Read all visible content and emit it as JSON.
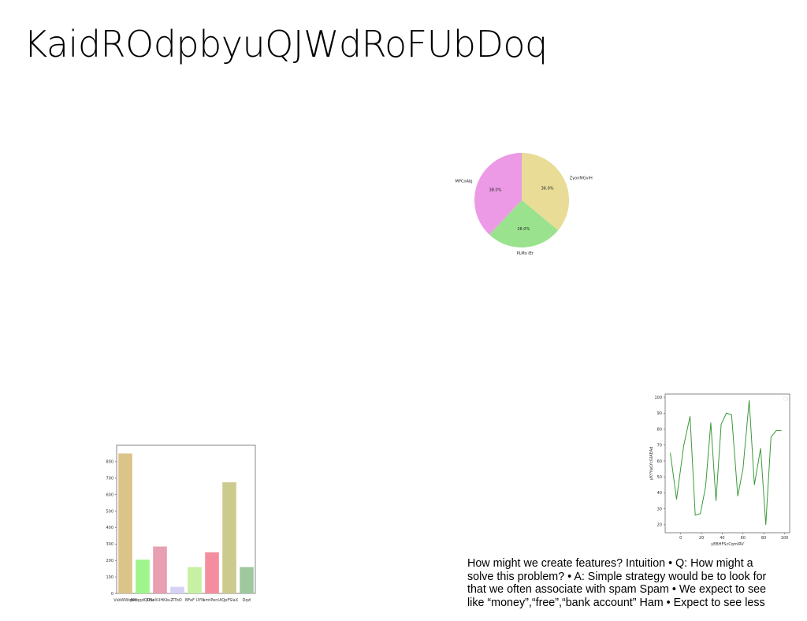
{
  "slide": {
    "title": "KaidROdpbyuQJWdRoFUbDoq",
    "body_lines": [
      "How might we create features? Intuition • Q: How might a",
      "solve this problem? • A: Simple strategy would be to look for",
      "that we often associate with spam Spam • We expect to see",
      "like “money”,“free”,“bank account” Ham • Expect to see less"
    ]
  },
  "chart_data": [
    {
      "type": "pie",
      "labels": [
        "ZyonMGviH",
        "PLMx iEr",
        "MPCnAbj"
      ],
      "values": [
        36.0,
        26.0,
        38.0
      ],
      "value_labels": [
        "36.0%",
        "26.0%",
        "38.0%"
      ],
      "colors": [
        "#e8dc96",
        "#9ae28e",
        "#ec9ae6"
      ],
      "start_angle": "top, clockwise"
    },
    {
      "type": "bar",
      "categories": [
        "VsbWWqoxi",
        "BMqqdQUhc",
        "DSeXUHKkuZ",
        "ITbO",
        "BFeF UYN",
        "smtPenU",
        "iQpFSlaX",
        "Dqzl"
      ],
      "values": [
        850,
        205,
        285,
        40,
        160,
        250,
        675,
        160
      ],
      "colors": [
        "#dcc38a",
        "#a0f48c",
        "#e89fb2",
        "#d6d2f6",
        "#c6f0a2",
        "#f48e9e",
        "#cccb8e",
        "#9ec89e"
      ],
      "ylim": [
        0,
        900
      ],
      "yticks": [
        0,
        100,
        200,
        300,
        400,
        500,
        600,
        700,
        800
      ]
    },
    {
      "type": "line",
      "x": [
        -10,
        -4,
        3,
        9,
        14,
        19,
        24,
        29,
        34,
        39,
        44,
        49,
        55,
        60,
        66,
        71,
        77,
        82,
        87,
        92,
        97
      ],
      "y": [
        65,
        36,
        70,
        88,
        26,
        27,
        44,
        84,
        35,
        83,
        90,
        89,
        38,
        55,
        98,
        45,
        68,
        20,
        75,
        79,
        79
      ],
      "color": "#3a9a3a",
      "xlabel": "yEBHFScCqmIRV",
      "ylabel": "yKYYwLYcGIAEAd",
      "xlim": [
        -15,
        105
      ],
      "ylim": [
        15,
        102
      ],
      "xticks": [
        0,
        20,
        40,
        60,
        80,
        100
      ],
      "yticks": [
        20,
        30,
        40,
        50,
        60,
        70,
        80,
        90,
        100
      ]
    }
  ]
}
